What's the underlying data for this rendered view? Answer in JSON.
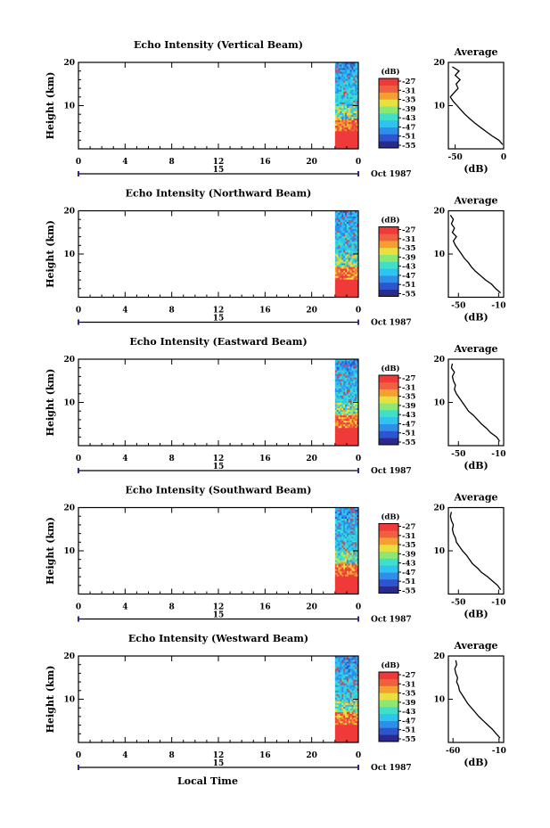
{
  "chart_data": [
    {
      "type": "heatmap",
      "title": "Echo Intensity (Vertical Beam)",
      "ylabel": "Height (km)",
      "x_ticks": [
        "0",
        "4",
        "8",
        "12",
        "16",
        "20",
        "0"
      ],
      "date_label": "15",
      "month_label": "Oct 1987",
      "ylim": [
        0,
        20
      ],
      "y_ticks": [
        "20",
        "10"
      ],
      "colorbar": {
        "unit": "(dB)",
        "ticks": [
          "-27",
          "-31",
          "-35",
          "-39",
          "-43",
          "-47",
          "-51",
          "-55"
        ]
      },
      "data_hours": [
        22,
        24
      ],
      "profile": {
        "title": "Average",
        "xlabel": "(dB)",
        "x_ticks": [
          "-50",
          "0"
        ],
        "y_ticks": [
          "20",
          "10"
        ],
        "xlim": [
          -57,
          0
        ],
        "heights": [
          1,
          2,
          3,
          4,
          5,
          6,
          7,
          8,
          9,
          10,
          11,
          12,
          13,
          14,
          15,
          16,
          17,
          18,
          19
        ],
        "values": [
          -1,
          -5,
          -12,
          -18,
          -24,
          -30,
          -35,
          -40,
          -44,
          -48,
          -52,
          -55,
          -51,
          -47,
          -49,
          -45,
          -50,
          -46,
          -53
        ]
      }
    },
    {
      "type": "heatmap",
      "title": "Echo Intensity (Northward Beam)",
      "ylabel": "Height (km)",
      "x_ticks": [
        "0",
        "4",
        "8",
        "12",
        "16",
        "20",
        "0"
      ],
      "date_label": "15",
      "month_label": "Oct 1987",
      "ylim": [
        0,
        20
      ],
      "y_ticks": [
        "20",
        "10"
      ],
      "colorbar": {
        "unit": "(dB)",
        "ticks": [
          "-27",
          "-31",
          "-35",
          "-39",
          "-43",
          "-47",
          "-51",
          "-55"
        ]
      },
      "data_hours": [
        22,
        24
      ],
      "profile": {
        "title": "Average",
        "xlabel": "(dB)",
        "x_ticks": [
          "-50",
          "-10"
        ],
        "y_ticks": [
          "20",
          "10"
        ],
        "xlim": [
          -60,
          -5
        ],
        "heights": [
          1,
          2,
          3,
          4,
          5,
          6,
          7,
          8,
          9,
          10,
          11,
          12,
          13,
          14,
          15,
          16,
          17,
          18,
          19
        ],
        "values": [
          -8,
          -13,
          -17,
          -23,
          -28,
          -33,
          -37,
          -40,
          -44,
          -47,
          -50,
          -53,
          -55,
          -52,
          -56,
          -54,
          -57,
          -55,
          -58
        ]
      }
    },
    {
      "type": "heatmap",
      "title": "Echo Intensity (Eastward Beam)",
      "ylabel": "Height (km)",
      "x_ticks": [
        "0",
        "4",
        "8",
        "12",
        "16",
        "20",
        "0"
      ],
      "date_label": "15",
      "month_label": "Oct 1987",
      "ylim": [
        0,
        20
      ],
      "y_ticks": [
        "20",
        "10"
      ],
      "colorbar": {
        "unit": "(dB)",
        "ticks": [
          "-27",
          "-31",
          "-35",
          "-39",
          "-43",
          "-47",
          "-51",
          "-55"
        ]
      },
      "data_hours": [
        22,
        24
      ],
      "profile": {
        "title": "Average",
        "xlabel": "(dB)",
        "x_ticks": [
          "-50",
          "-10"
        ],
        "y_ticks": [
          "20",
          "10"
        ],
        "xlim": [
          -60,
          -5
        ],
        "heights": [
          1,
          2,
          3,
          4,
          5,
          6,
          7,
          8,
          9,
          10,
          11,
          12,
          13,
          14,
          15,
          16,
          17,
          18,
          19
        ],
        "values": [
          -9,
          -12,
          -18,
          -22,
          -27,
          -31,
          -35,
          -40,
          -43,
          -46,
          -49,
          -52,
          -54,
          -53,
          -55,
          -56,
          -54,
          -57,
          -56
        ]
      }
    },
    {
      "type": "heatmap",
      "title": "Echo Intensity (Southward Beam)",
      "ylabel": "Height (km)",
      "x_ticks": [
        "0",
        "4",
        "8",
        "12",
        "16",
        "20",
        "0"
      ],
      "date_label": "15",
      "month_label": "Oct 1987",
      "ylim": [
        0,
        20
      ],
      "y_ticks": [
        "20",
        "10"
      ],
      "colorbar": {
        "unit": "(dB)",
        "ticks": [
          "-27",
          "-31",
          "-35",
          "-39",
          "-43",
          "-47",
          "-51",
          "-55"
        ]
      },
      "data_hours": [
        22,
        24
      ],
      "profile": {
        "title": "Average",
        "xlabel": "(dB)",
        "x_ticks": [
          "-50",
          "-10"
        ],
        "y_ticks": [
          "20",
          "10"
        ],
        "xlim": [
          -60,
          -5
        ],
        "heights": [
          1,
          2,
          3,
          4,
          5,
          6,
          7,
          8,
          9,
          10,
          11,
          12,
          13,
          14,
          15,
          16,
          17,
          18,
          19
        ],
        "values": [
          -8,
          -11,
          -16,
          -21,
          -27,
          -31,
          -36,
          -39,
          -42,
          -46,
          -49,
          -52,
          -53,
          -55,
          -56,
          -55,
          -57,
          -58,
          -57
        ]
      }
    },
    {
      "type": "heatmap",
      "title": "Echo Intensity (Westward Beam)",
      "ylabel": "Height (km)",
      "xlabel": "Local Time",
      "x_ticks": [
        "0",
        "4",
        "8",
        "12",
        "16",
        "20",
        "0"
      ],
      "date_label": "15",
      "month_label": "Oct 1987",
      "ylim": [
        0,
        20
      ],
      "y_ticks": [
        "20",
        "10"
      ],
      "colorbar": {
        "unit": "(dB)",
        "ticks": [
          "-27",
          "-31",
          "-35",
          "-39",
          "-43",
          "-47",
          "-51",
          "-55"
        ]
      },
      "data_hours": [
        22,
        24
      ],
      "profile": {
        "title": "Average",
        "xlabel": "(dB)",
        "x_ticks": [
          "-60",
          "-10"
        ],
        "y_ticks": [
          "20",
          "10"
        ],
        "xlim": [
          -65,
          -5
        ],
        "heights": [
          1,
          2,
          3,
          4,
          5,
          6,
          7,
          8,
          9,
          10,
          11,
          12,
          13,
          14,
          15,
          16,
          17,
          18,
          19
        ],
        "values": [
          -9,
          -13,
          -17,
          -22,
          -27,
          -32,
          -36,
          -40,
          -44,
          -47,
          -50,
          -53,
          -54,
          -56,
          -55,
          -57,
          -58,
          -56,
          -57
        ]
      }
    }
  ],
  "colors": {
    "colorscale": [
      "#2a2a8c",
      "#2d55d0",
      "#2f8ee8",
      "#2fc4f0",
      "#40e0c8",
      "#8ce870",
      "#e8e040",
      "#f4a030",
      "#f06040",
      "#f03a3a"
    ]
  }
}
